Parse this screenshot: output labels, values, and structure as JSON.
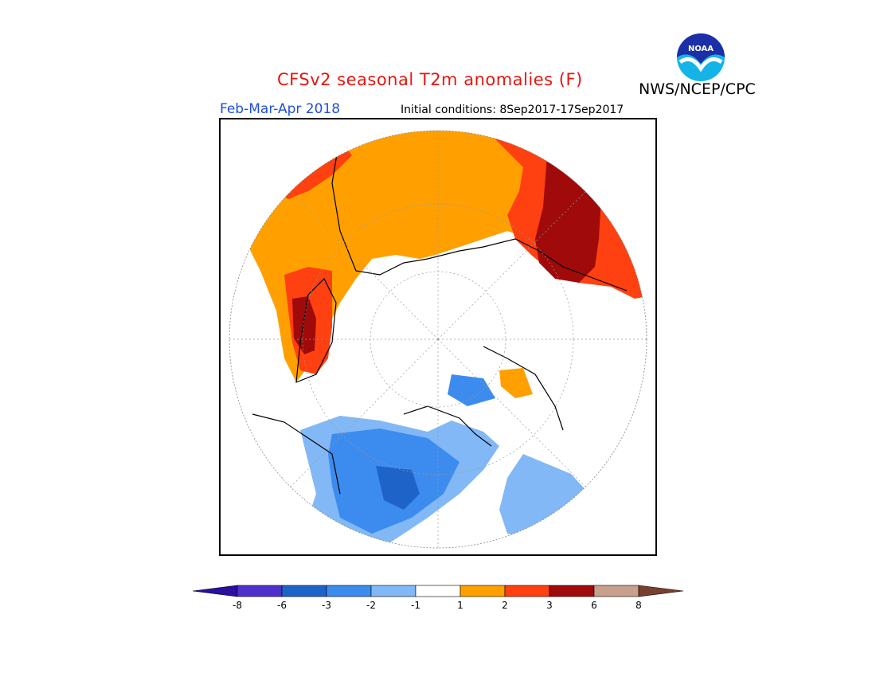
{
  "header": {
    "title": "CFSv2 seasonal T2m anomalies (F)",
    "org": "NWS/NCEP/CPC",
    "logo_text": "NOAA",
    "period": "Feb-Mar-Apr 2018",
    "initial_conditions": "Initial conditions: 8Sep2017-17Sep2017"
  },
  "colorbar": {
    "labels": [
      "-8",
      "-6",
      "-3",
      "-2",
      "-1",
      "1",
      "2",
      "3",
      "6",
      "8"
    ],
    "colors": [
      "#2a0fa0",
      "#5030cc",
      "#1e64c8",
      "#3c8cf0",
      "#82b8f5",
      "#ffffff",
      "#ffa000",
      "#ff4010",
      "#a00a0a",
      "#c8a08c",
      "#784030"
    ]
  },
  "map": {
    "projection": "north-polar-stereographic",
    "colors": {
      "warm1": "#ffa000",
      "warm2": "#ff4010",
      "warm3": "#a00a0a",
      "cool1": "#82b8f5",
      "cool2": "#3c8cf0",
      "cool3": "#1e64c8"
    }
  }
}
